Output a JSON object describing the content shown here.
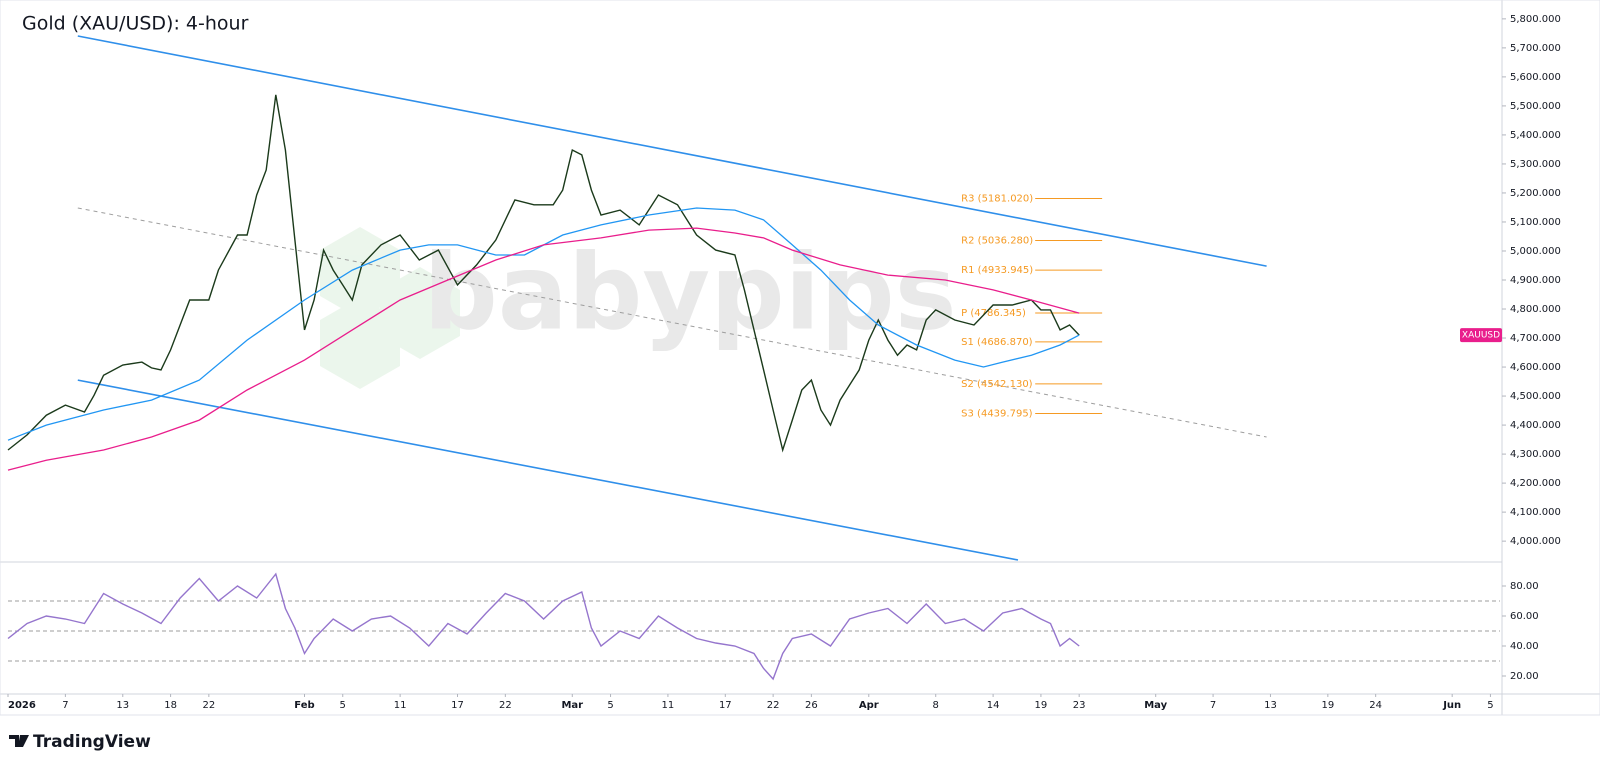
{
  "chart_data": [
    {
      "type": "line",
      "title": "Gold (XAU/USD): 4-hour",
      "watermark": "babypips",
      "footer": "TradingView",
      "xlim": [
        1,
        157
      ],
      "ylim": [
        3935,
        5865
      ],
      "yticks": [
        {
          "value": 4000,
          "label": "4,000.000"
        },
        {
          "value": 4100,
          "label": "4,100.000"
        },
        {
          "value": 4200,
          "label": "4,200.000"
        },
        {
          "value": 4300,
          "label": "4,300.000"
        },
        {
          "value": 4400,
          "label": "4,400.000"
        },
        {
          "value": 4500,
          "label": "4,500.000"
        },
        {
          "value": 4600,
          "label": "4,600.000"
        },
        {
          "value": 4700,
          "label": "4,700.000"
        },
        {
          "value": 4800,
          "label": "4,800.000"
        },
        {
          "value": 4900,
          "label": "4,900.000"
        },
        {
          "value": 5000,
          "label": "5,000.000"
        },
        {
          "value": 5100,
          "label": "5,100.000"
        },
        {
          "value": 5200,
          "label": "5,200.000"
        },
        {
          "value": 5300,
          "label": "5,300.000"
        },
        {
          "value": 5400,
          "label": "5,400.000"
        },
        {
          "value": 5500,
          "label": "5,500.000"
        },
        {
          "value": 5600,
          "label": "5,600.000"
        },
        {
          "value": 5700,
          "label": "5,700.000"
        },
        {
          "value": 5800,
          "label": "5,800.000"
        }
      ],
      "tag_color": "#e91e8c",
      "series": [
        {
          "name": "XAUUSD",
          "color": "#1b3a1b",
          "x": [
            1,
            3,
            5,
            7,
            9,
            10,
            11,
            13,
            15,
            16,
            17,
            18,
            20,
            22,
            23,
            25,
            26,
            27,
            28,
            29,
            30,
            31,
            32,
            33,
            34,
            35,
            36,
            37,
            38,
            40,
            42,
            44,
            46,
            48,
            50,
            52,
            54,
            56,
            58,
            59,
            60,
            61,
            62,
            63,
            65,
            67,
            69,
            71,
            73,
            75,
            77,
            78,
            79,
            80,
            81,
            82,
            83,
            84,
            85,
            86,
            87,
            88,
            89,
            90,
            91,
            92,
            93,
            94,
            95,
            96,
            97,
            98,
            100,
            102,
            104,
            106,
            108,
            109,
            110,
            111,
            112,
            113
          ],
          "values": [
            4314,
            4366,
            4434,
            4469,
            4445,
            4503,
            4572,
            4607,
            4617,
            4597,
            4590,
            4659,
            4831,
            4831,
            4934,
            5055,
            5055,
            5193,
            5279,
            5538,
            5348,
            5038,
            4728,
            4831,
            5003,
            4934,
            4883,
            4831,
            4952,
            5021,
            5055,
            4969,
            5003,
            4883,
            4952,
            5038,
            5176,
            5159,
            5159,
            5210,
            5348,
            5331,
            5210,
            5124,
            5141,
            5090,
            5193,
            5159,
            5055,
            5003,
            4986,
            4866,
            4728,
            4590,
            4452,
            4314,
            4417,
            4521,
            4555,
            4452,
            4400,
            4486,
            4538,
            4590,
            4693,
            4762,
            4693,
            4641,
            4676,
            4659,
            4762,
            4797,
            4762,
            4745,
            4814,
            4814,
            4831,
            4797,
            4797,
            4728,
            4745,
            4710
          ]
        },
        {
          "color": "#2196f3",
          "x": [
            1,
            5,
            11,
            16,
            21,
            26,
            32,
            37,
            42,
            45,
            48,
            52,
            55,
            59,
            63,
            68,
            73,
            77,
            80,
            83,
            86,
            89,
            92,
            96,
            100,
            103,
            105,
            108,
            111,
            113
          ],
          "values": [
            4348,
            4400,
            4452,
            4486,
            4555,
            4693,
            4831,
            4934,
            5003,
            5021,
            5021,
            4986,
            4986,
            5055,
            5090,
            5124,
            5148,
            5141,
            5107,
            5021,
            4934,
            4831,
            4745,
            4676,
            4624,
            4600,
            4617,
            4641,
            4676,
            4710
          ]
        },
        {
          "color": "#e91e8c",
          "x": [
            1,
            5,
            11,
            16,
            21,
            26,
            32,
            37,
            42,
            47,
            52,
            57,
            63,
            68,
            73,
            77,
            80,
            83,
            88,
            93,
            99,
            104,
            108,
            113
          ],
          "values": [
            4245,
            4279,
            4314,
            4359,
            4417,
            4521,
            4624,
            4728,
            4831,
            4900,
            4969,
            5021,
            5045,
            5072,
            5079,
            5062,
            5045,
            5003,
            4952,
            4917,
            4900,
            4866,
            4831,
            4786
          ]
        }
      ],
      "channel_lines": [
        {
          "color": "#2f8fea",
          "dashed": false,
          "x": [
            8.3,
            132.6
          ],
          "values": [
            5741,
            4948
          ]
        },
        {
          "color": "#2f8fea",
          "dashed": false,
          "x": [
            8.3,
            106.6
          ],
          "values": [
            4555,
            3935
          ]
        },
        {
          "color": "#9e9e9e",
          "dashed": true,
          "x": [
            8.3,
            132.6
          ],
          "values": [
            5148,
            4359
          ]
        }
      ],
      "pivot_color": "#f59a23",
      "pivot_levels": [
        {
          "label": "R3 (5181.020)",
          "value": 5181.02,
          "x": [
            108.4,
            115.4
          ]
        },
        {
          "label": "R2 (5036.280)",
          "value": 5036.28,
          "x": [
            108.4,
            115.4
          ]
        },
        {
          "label": "R1 (4933.945)",
          "value": 4933.945,
          "x": [
            108.4,
            115.4
          ]
        },
        {
          "label": "P (4786.345)",
          "value": 4786.345,
          "x": [
            108.4,
            115.4
          ]
        },
        {
          "label": "S1 (4686.870)",
          "value": 4686.87,
          "x": [
            108.4,
            115.4
          ]
        },
        {
          "label": "S2 (4542.130)",
          "value": 4542.13,
          "x": [
            108.4,
            115.4
          ]
        },
        {
          "label": "S3 (4439.795)",
          "value": 4439.795,
          "x": [
            108.4,
            115.4
          ]
        }
      ]
    },
    {
      "type": "line",
      "xlim": [
        1,
        157
      ],
      "ylim": [
        10,
        94
      ],
      "yticks": [
        {
          "value": 20,
          "label": "20.00"
        },
        {
          "value": 40,
          "label": "40.00"
        },
        {
          "value": 60,
          "label": "60.00"
        },
        {
          "value": 80,
          "label": "80.00"
        }
      ],
      "levels": [
        70,
        50,
        30
      ],
      "xticks": [
        {
          "value": 1,
          "label": "2026"
        },
        {
          "value": 7,
          "label": "7"
        },
        {
          "value": 13,
          "label": "13"
        },
        {
          "value": 18,
          "label": "18"
        },
        {
          "value": 22,
          "label": "22"
        },
        {
          "value": 32,
          "label": "Feb"
        },
        {
          "value": 36,
          "label": "5"
        },
        {
          "value": 42,
          "label": "11"
        },
        {
          "value": 48,
          "label": "17"
        },
        {
          "value": 53,
          "label": "22"
        },
        {
          "value": 60,
          "label": "Mar"
        },
        {
          "value": 64,
          "label": "5"
        },
        {
          "value": 70,
          "label": "11"
        },
        {
          "value": 76,
          "label": "17"
        },
        {
          "value": 81,
          "label": "22"
        },
        {
          "value": 85,
          "label": "26"
        },
        {
          "value": 91,
          "label": "Apr"
        },
        {
          "value": 98,
          "label": "8"
        },
        {
          "value": 104,
          "label": "14"
        },
        {
          "value": 109,
          "label": "19"
        },
        {
          "value": 113,
          "label": "23"
        },
        {
          "value": 121,
          "label": "May"
        },
        {
          "value": 127,
          "label": "7"
        },
        {
          "value": 133,
          "label": "13"
        },
        {
          "value": 139,
          "label": "19"
        },
        {
          "value": 144,
          "label": "24"
        },
        {
          "value": 152,
          "label": "Jun"
        },
        {
          "value": 156,
          "label": "5"
        }
      ],
      "series": [
        {
          "color": "#9575cd",
          "x": [
            1,
            3,
            5,
            7,
            9,
            11,
            13,
            15,
            17,
            19,
            21,
            23,
            25,
            27,
            29,
            30,
            31,
            32,
            33,
            35,
            37,
            39,
            41,
            43,
            45,
            47,
            49,
            51,
            53,
            55,
            57,
            59,
            61,
            62,
            63,
            65,
            67,
            69,
            71,
            73,
            75,
            77,
            79,
            80,
            81,
            82,
            83,
            85,
            87,
            89,
            91,
            93,
            95,
            97,
            99,
            101,
            103,
            105,
            107,
            109,
            110,
            111,
            112,
            113
          ],
          "values": [
            45,
            55,
            60,
            58,
            55,
            75,
            68,
            62,
            55,
            72,
            85,
            70,
            80,
            72,
            88,
            65,
            52,
            35,
            45,
            58,
            50,
            58,
            60,
            52,
            40,
            55,
            48,
            62,
            75,
            70,
            58,
            70,
            76,
            52,
            40,
            50,
            45,
            60,
            52,
            45,
            42,
            40,
            35,
            25,
            18,
            35,
            45,
            48,
            40,
            58,
            62,
            65,
            55,
            68,
            55,
            58,
            50,
            62,
            65,
            58,
            55,
            40,
            45,
            40
          ]
        }
      ]
    }
  ]
}
